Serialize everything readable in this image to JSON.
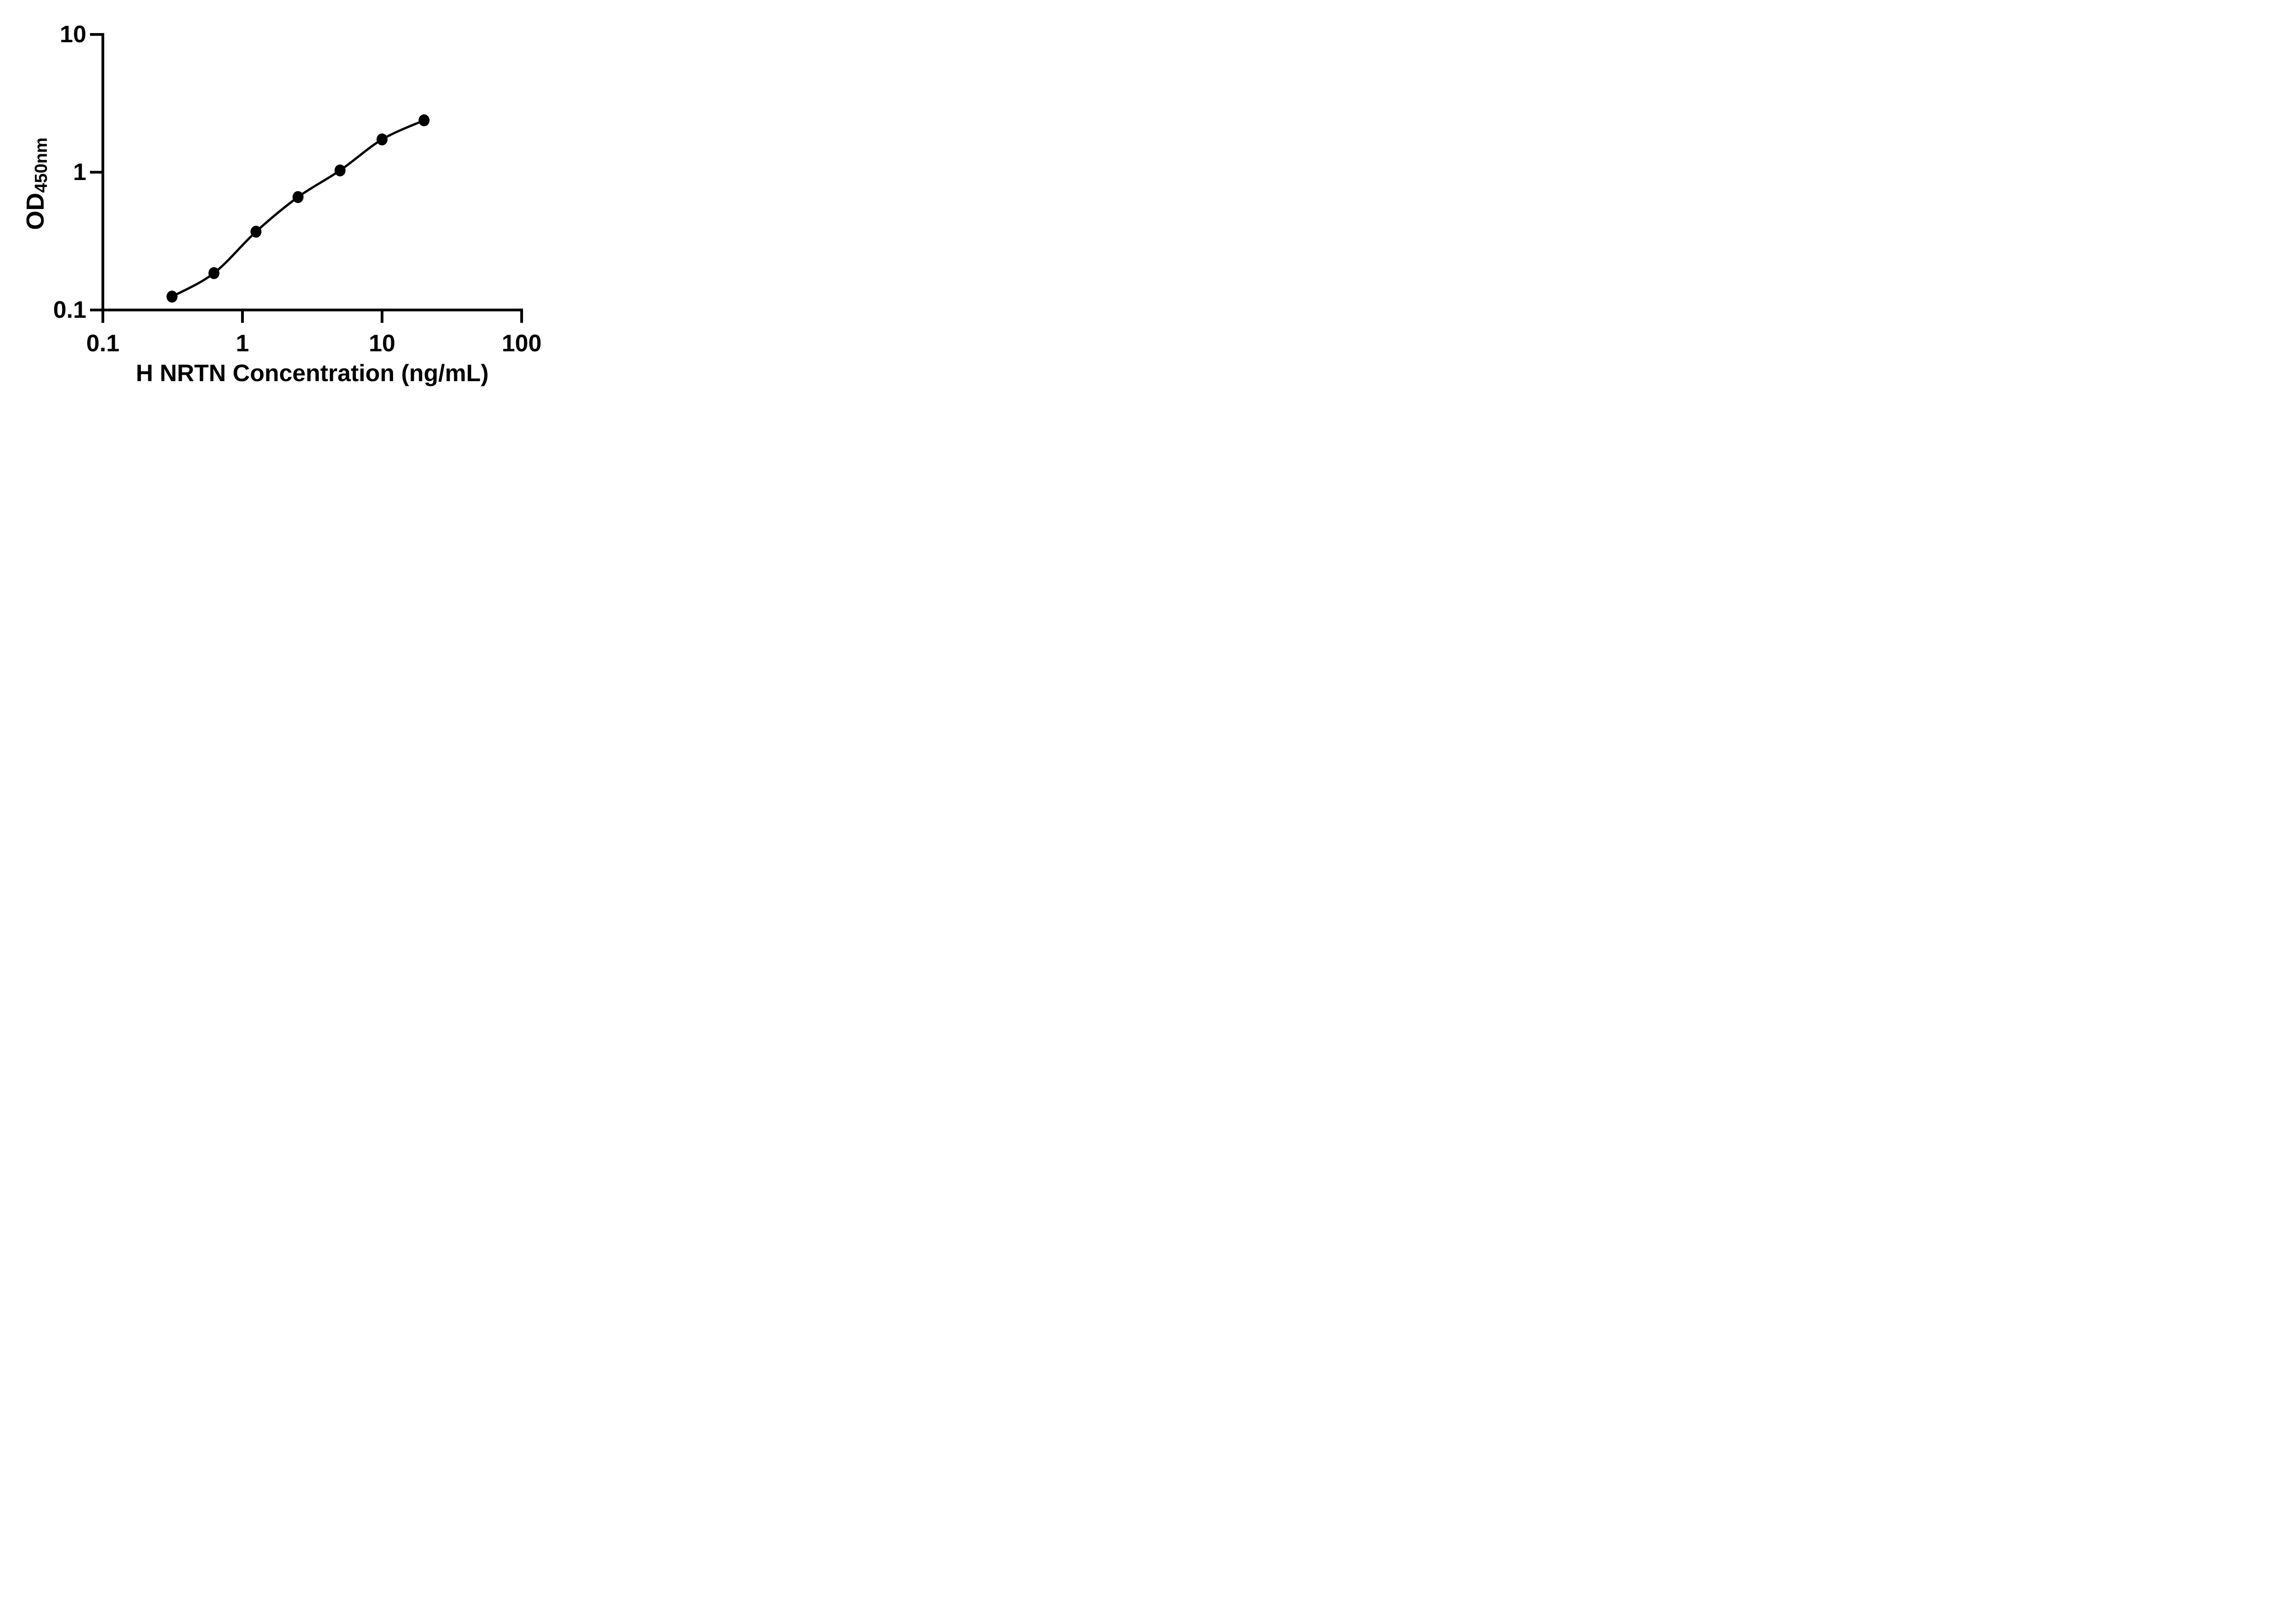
{
  "chart_data": {
    "type": "scatter",
    "subtype": "log-log standard curve with fitted smooth line",
    "title": "",
    "xlabel": "H NRTN Concentration (ng/mL)",
    "ylabel_main": "OD",
    "ylabel_sub": "450nm",
    "x_scale": "log",
    "y_scale": "log",
    "xlim": [
      0.1,
      100
    ],
    "ylim": [
      0.1,
      10
    ],
    "grid": "off",
    "legend": "none",
    "x_ticks": [
      {
        "value": 0.1,
        "label": "0.1"
      },
      {
        "value": 1,
        "label": "1"
      },
      {
        "value": 10,
        "label": "10"
      },
      {
        "value": 100,
        "label": "100"
      }
    ],
    "y_ticks": [
      {
        "value": 0.1,
        "label": "0.1"
      },
      {
        "value": 1,
        "label": "1"
      },
      {
        "value": 10,
        "label": "10"
      }
    ],
    "series": [
      {
        "marker": "filled-circle",
        "line": "smooth",
        "color": "#000000",
        "x": [
          0.313,
          0.625,
          1.25,
          2.5,
          5,
          10,
          20
        ],
        "y": [
          0.125,
          0.185,
          0.37,
          0.66,
          1.03,
          1.73,
          2.38
        ]
      }
    ]
  },
  "colors": {
    "foreground": "#000000",
    "background": "#ffffff"
  }
}
